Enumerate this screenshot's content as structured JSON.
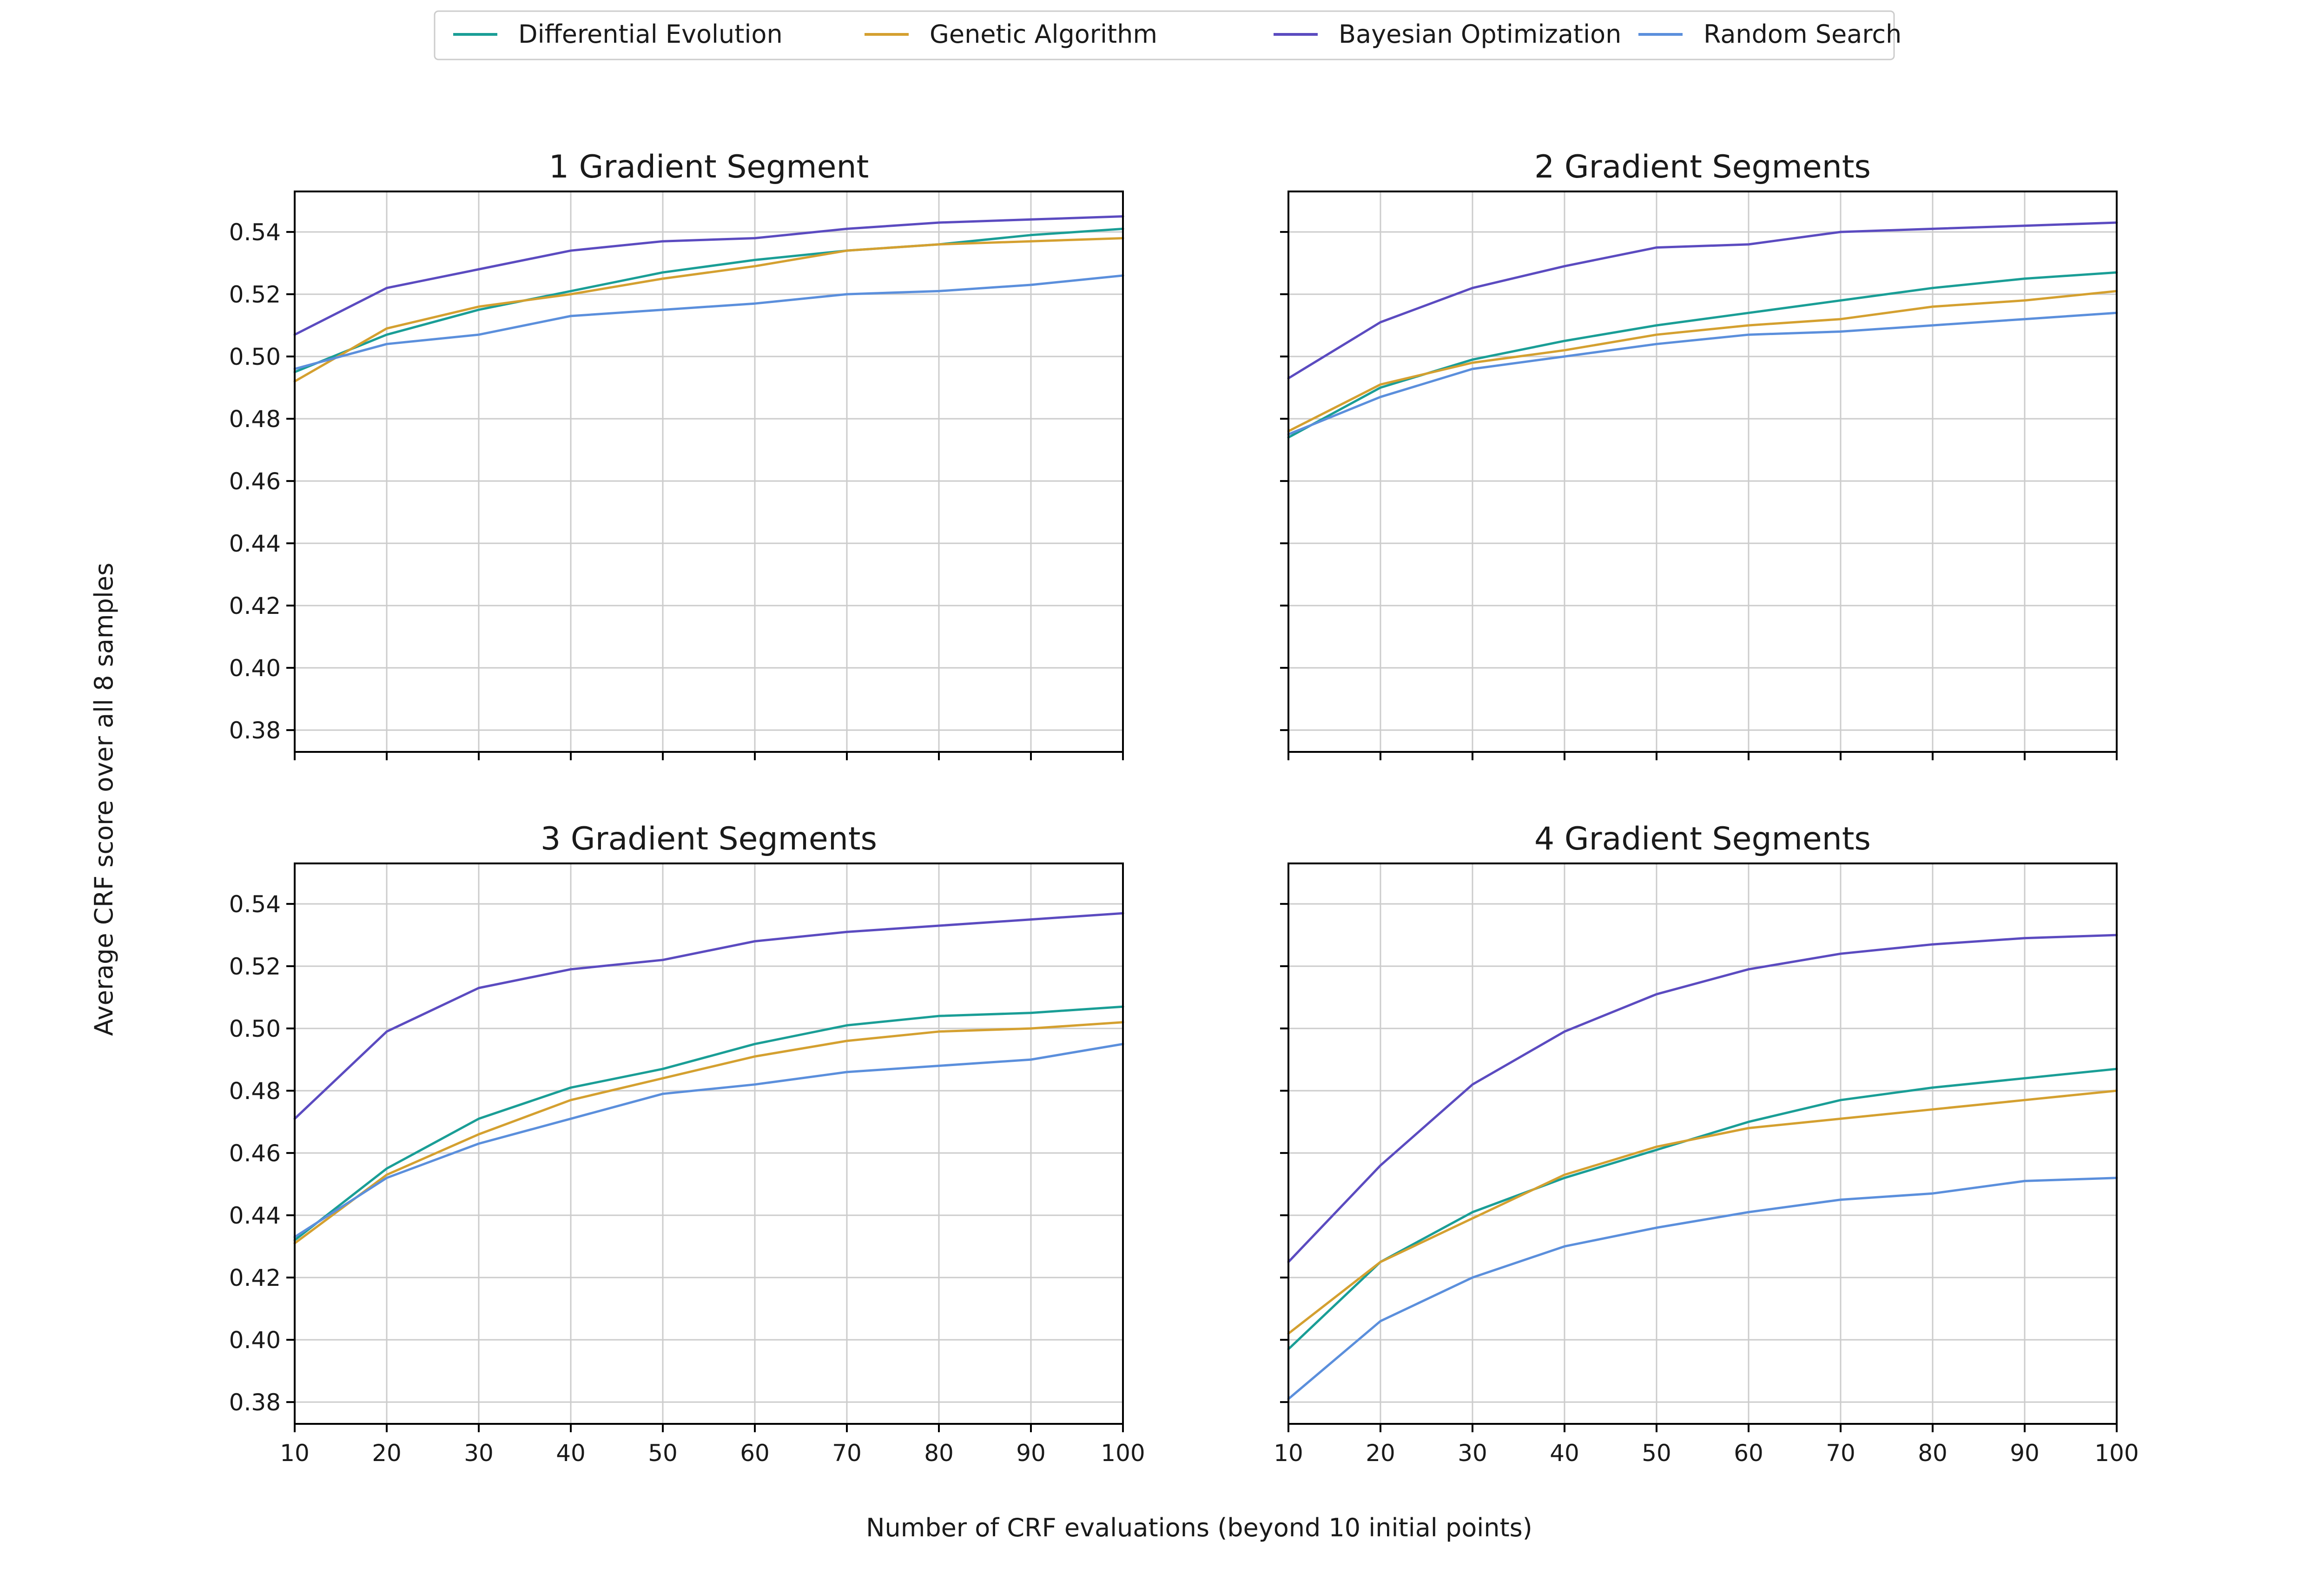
{
  "chart_data": {
    "type": "line",
    "ylabel": "Average CRF score over all 8 samples",
    "xlabel": "Number of CRF evaluations (beyond 10 initial points)",
    "xlim": [
      10,
      100
    ],
    "ylim": [
      0.373,
      0.553
    ],
    "xticks": [
      10,
      20,
      30,
      40,
      50,
      60,
      70,
      80,
      90,
      100
    ],
    "yticks": [
      0.38,
      0.4,
      0.42,
      0.44,
      0.46,
      0.48,
      0.5,
      0.52,
      0.54
    ],
    "grid": true,
    "sharex": true,
    "sharey": true,
    "legend_placement": "top-center",
    "legend": [
      {
        "name": "Differential Evolution",
        "color": "#1a9e96"
      },
      {
        "name": "Genetic Algorithm",
        "color": "#d4a030"
      },
      {
        "name": "Bayesian Optimization",
        "color": "#5b4bc0"
      },
      {
        "name": "Random Search",
        "color": "#5b8fdc"
      }
    ],
    "x": [
      10,
      20,
      30,
      40,
      50,
      60,
      70,
      80,
      90,
      100
    ],
    "panels": [
      {
        "title": "1 Gradient Segment",
        "series": [
          {
            "name": "Differential Evolution",
            "color": "#1a9e96",
            "values": [
              0.495,
              0.507,
              0.515,
              0.521,
              0.527,
              0.531,
              0.534,
              0.536,
              0.539,
              0.541
            ]
          },
          {
            "name": "Genetic Algorithm",
            "color": "#d4a030",
            "values": [
              0.492,
              0.509,
              0.516,
              0.52,
              0.525,
              0.529,
              0.534,
              0.536,
              0.537,
              0.538
            ]
          },
          {
            "name": "Bayesian Optimization",
            "color": "#5b4bc0",
            "values": [
              0.507,
              0.522,
              0.528,
              0.534,
              0.537,
              0.538,
              0.541,
              0.543,
              0.544,
              0.545
            ]
          },
          {
            "name": "Random Search",
            "color": "#5b8fdc",
            "values": [
              0.496,
              0.504,
              0.507,
              0.513,
              0.515,
              0.517,
              0.52,
              0.521,
              0.523,
              0.526
            ]
          }
        ]
      },
      {
        "title": "2 Gradient Segments",
        "series": [
          {
            "name": "Differential Evolution",
            "color": "#1a9e96",
            "values": [
              0.474,
              0.49,
              0.499,
              0.505,
              0.51,
              0.514,
              0.518,
              0.522,
              0.525,
              0.527
            ]
          },
          {
            "name": "Genetic Algorithm",
            "color": "#d4a030",
            "values": [
              0.476,
              0.491,
              0.498,
              0.502,
              0.507,
              0.51,
              0.512,
              0.516,
              0.518,
              0.521
            ]
          },
          {
            "name": "Bayesian Optimization",
            "color": "#5b4bc0",
            "values": [
              0.493,
              0.511,
              0.522,
              0.529,
              0.535,
              0.536,
              0.54,
              0.541,
              0.542,
              0.543
            ]
          },
          {
            "name": "Random Search",
            "color": "#5b8fdc",
            "values": [
              0.475,
              0.487,
              0.496,
              0.5,
              0.504,
              0.507,
              0.508,
              0.51,
              0.512,
              0.514
            ]
          }
        ]
      },
      {
        "title": "3 Gradient Segments",
        "series": [
          {
            "name": "Differential Evolution",
            "color": "#1a9e96",
            "values": [
              0.432,
              0.455,
              0.471,
              0.481,
              0.487,
              0.495,
              0.501,
              0.504,
              0.505,
              0.507
            ]
          },
          {
            "name": "Genetic Algorithm",
            "color": "#d4a030",
            "values": [
              0.431,
              0.453,
              0.466,
              0.477,
              0.484,
              0.491,
              0.496,
              0.499,
              0.5,
              0.502
            ]
          },
          {
            "name": "Bayesian Optimization",
            "color": "#5b4bc0",
            "values": [
              0.471,
              0.499,
              0.513,
              0.519,
              0.522,
              0.528,
              0.531,
              0.533,
              0.535,
              0.537
            ]
          },
          {
            "name": "Random Search",
            "color": "#5b8fdc",
            "values": [
              0.433,
              0.452,
              0.463,
              0.471,
              0.479,
              0.482,
              0.486,
              0.488,
              0.49,
              0.495
            ]
          }
        ]
      },
      {
        "title": "4 Gradient Segments",
        "series": [
          {
            "name": "Differential Evolution",
            "color": "#1a9e96",
            "values": [
              0.397,
              0.425,
              0.441,
              0.452,
              0.461,
              0.47,
              0.477,
              0.481,
              0.484,
              0.487
            ]
          },
          {
            "name": "Genetic Algorithm",
            "color": "#d4a030",
            "values": [
              0.402,
              0.425,
              0.439,
              0.453,
              0.462,
              0.468,
              0.471,
              0.474,
              0.477,
              0.48
            ]
          },
          {
            "name": "Bayesian Optimization",
            "color": "#5b4bc0",
            "values": [
              0.425,
              0.456,
              0.482,
              0.499,
              0.511,
              0.519,
              0.524,
              0.527,
              0.529,
              0.53
            ]
          },
          {
            "name": "Random Search",
            "color": "#5b8fdc",
            "values": [
              0.381,
              0.406,
              0.42,
              0.43,
              0.436,
              0.441,
              0.445,
              0.447,
              0.451,
              0.452
            ]
          }
        ]
      }
    ]
  }
}
